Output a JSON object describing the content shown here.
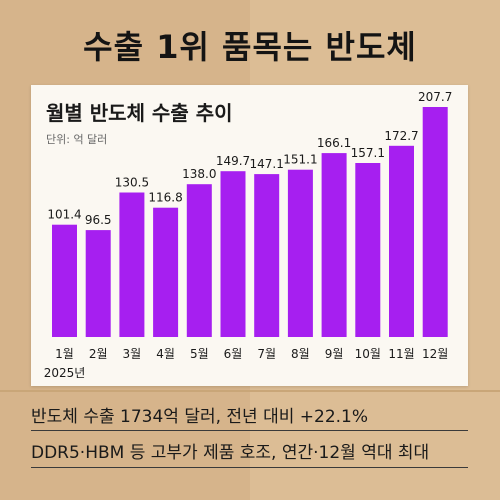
{
  "headline": "수출 1위 품목는 반도체",
  "card": {
    "title": "월별 반도체 수출 추이",
    "unit": "단위: 억 달러"
  },
  "captions": [
    "반도체 수출 1734억 달러, 전년 대비 +22.1%",
    "DDR5·HBM 등 고부가 제품 호조, 연간·12월 역대 최대"
  ],
  "colors": {
    "bar": "#a61ff0",
    "background": "#d9b88f",
    "card": "#fbf8f2"
  },
  "chart_data": {
    "type": "bar",
    "title": "월별 반도체 수출 추이",
    "unit_label": "단위: 억 달러",
    "categories": [
      "1월",
      "2월",
      "3월",
      "4월",
      "5월",
      "6월",
      "7월",
      "8월",
      "9월",
      "10월",
      "11월",
      "12월"
    ],
    "year_label": "2025년",
    "values": [
      101.4,
      96.5,
      130.5,
      116.8,
      138.0,
      149.7,
      147.1,
      151.1,
      166.1,
      157.1,
      172.7,
      207.7
    ],
    "value_labels": [
      "101.4",
      "96.5",
      "130.5",
      "116.8",
      "138.0",
      "149.7",
      "147.1",
      "151.1",
      "166.1",
      "157.1",
      "172.7",
      "207.7"
    ],
    "ylim": [
      0,
      207.7
    ],
    "grid": false,
    "legend": "none"
  }
}
